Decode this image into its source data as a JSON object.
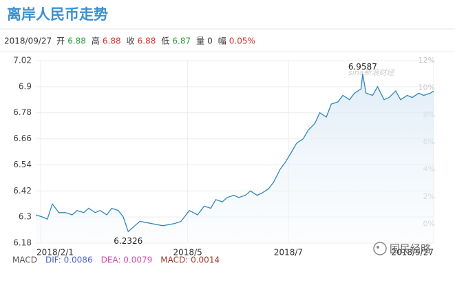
{
  "chart_data": {
    "type": "line",
    "title": "离岸人民币走势",
    "quote": {
      "date": "2018/09/27",
      "items": [
        {
          "label": "开",
          "value": "6.88",
          "color": "#2a9d3a"
        },
        {
          "label": "高",
          "value": "6.88",
          "color": "#d0312d"
        },
        {
          "label": "收",
          "value": "6.88",
          "color": "#d0312d"
        },
        {
          "label": "低",
          "value": "6.87",
          "color": "#2a9d3a"
        },
        {
          "label": "量",
          "value": "0",
          "color": "#333333"
        },
        {
          "label": "幅",
          "value": "0.05%",
          "color": "#d0312d"
        }
      ]
    },
    "x": [
      "2018/1/29",
      "2018/2/2",
      "2018/2/5",
      "2018/2/8",
      "2018/2/12",
      "2018/2/16",
      "2018/2/20",
      "2018/2/23",
      "2018/2/27",
      "2018/3/2",
      "2018/3/6",
      "2018/3/9",
      "2018/3/13",
      "2018/3/16",
      "2018/3/20",
      "2018/3/23",
      "2018/3/26",
      "2018/3/30",
      "2018/4/2",
      "2018/4/9",
      "2018/4/16",
      "2018/4/23",
      "2018/4/27",
      "2018/5/2",
      "2018/5/7",
      "2018/5/11",
      "2018/5/15",
      "2018/5/18",
      "2018/5/22",
      "2018/5/25",
      "2018/5/29",
      "2018/6/1",
      "2018/6/5",
      "2018/6/8",
      "2018/6/12",
      "2018/6/15",
      "2018/6/19",
      "2018/6/22",
      "2018/6/26",
      "2018/6/29",
      "2018/7/3",
      "2018/7/6",
      "2018/7/10",
      "2018/7/13",
      "2018/7/17",
      "2018/7/20",
      "2018/7/24",
      "2018/7/27",
      "2018/7/31",
      "2018/8/3",
      "2018/8/7",
      "2018/8/10",
      "2018/8/14",
      "2018/8/15",
      "2018/8/17",
      "2018/8/21",
      "2018/8/24",
      "2018/8/28",
      "2018/8/31",
      "2018/9/4",
      "2018/9/7",
      "2018/9/11",
      "2018/9/14",
      "2018/9/18",
      "2018/9/21",
      "2018/9/25",
      "2018/9/27"
    ],
    "series": [
      {
        "name": "离岸人民币",
        "color": "#2f86b8",
        "values": [
          6.31,
          6.3,
          6.29,
          6.36,
          6.32,
          6.32,
          6.31,
          6.33,
          6.32,
          6.34,
          6.32,
          6.33,
          6.31,
          6.34,
          6.33,
          6.3,
          6.2326,
          6.26,
          6.28,
          6.27,
          6.26,
          6.27,
          6.28,
          6.33,
          6.31,
          6.35,
          6.34,
          6.38,
          6.37,
          6.39,
          6.4,
          6.39,
          6.4,
          6.42,
          6.4,
          6.41,
          6.43,
          6.46,
          6.52,
          6.55,
          6.6,
          6.64,
          6.66,
          6.7,
          6.73,
          6.78,
          6.76,
          6.82,
          6.83,
          6.86,
          6.84,
          6.87,
          6.89,
          6.9587,
          6.87,
          6.86,
          6.9,
          6.84,
          6.85,
          6.88,
          6.84,
          6.86,
          6.85,
          6.87,
          6.86,
          6.87,
          6.88
        ]
      }
    ],
    "annotated_points": [
      53,
      16
    ],
    "xlim": [
      "2018/1/29",
      "2018/9/27"
    ],
    "xticks": [
      "2018/2/1",
      "2018/5",
      "2018/7",
      "2018/9/27"
    ],
    "ylim": [
      6.18,
      7.02
    ],
    "yticks": [
      6.18,
      6.3,
      6.42,
      6.54,
      6.66,
      6.78,
      6.9,
      7.02
    ],
    "y2lim": [
      -1.4,
      12
    ],
    "y2ticks": [
      {
        "value": 0,
        "label": "0%"
      },
      {
        "value": 2,
        "label": "2%"
      },
      {
        "value": 4,
        "label": "4%"
      },
      {
        "value": 6,
        "label": "6%"
      },
      {
        "value": 8,
        "label": "8%"
      },
      {
        "value": 10,
        "label": "10%"
      },
      {
        "value": 12,
        "label": "12%"
      }
    ],
    "grid": true,
    "macd": [
      {
        "label": "MACD",
        "color": "#555555"
      },
      {
        "label": "DIF: 0.0086",
        "color": "#4a62c4"
      },
      {
        "label": "DEA: 0.0079",
        "color": "#d04ab0"
      },
      {
        "label": "MACD: 0.0014",
        "color": "#9a3a2a"
      }
    ],
    "watermarks": [
      "sina新浪财经",
      "国民经略"
    ]
  }
}
